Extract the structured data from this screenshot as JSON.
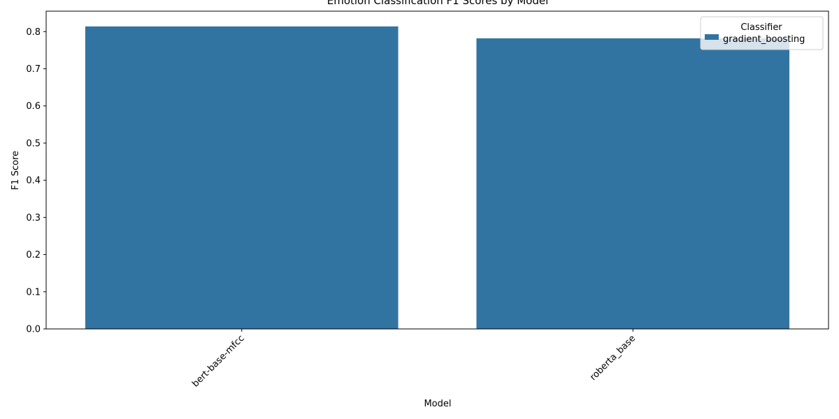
{
  "chart_data": {
    "type": "bar",
    "title": "Emotion Classification F1 Scores by Model",
    "xlabel": "Model",
    "ylabel": "F1 Score",
    "categories": [
      "bert-base-mfcc",
      "roberta_base"
    ],
    "series": [
      {
        "name": "gradient_boosting",
        "values": [
          0.814,
          0.782
        ]
      }
    ],
    "ylim": [
      0,
      0.855
    ],
    "yticks": [
      "0.0",
      "0.1",
      "0.2",
      "0.3",
      "0.4",
      "0.5",
      "0.6",
      "0.7",
      "0.8"
    ],
    "legend": {
      "title": "Classifier",
      "placement": "top-right"
    },
    "grid": false,
    "colors": {
      "bar": "#3274a1"
    }
  }
}
